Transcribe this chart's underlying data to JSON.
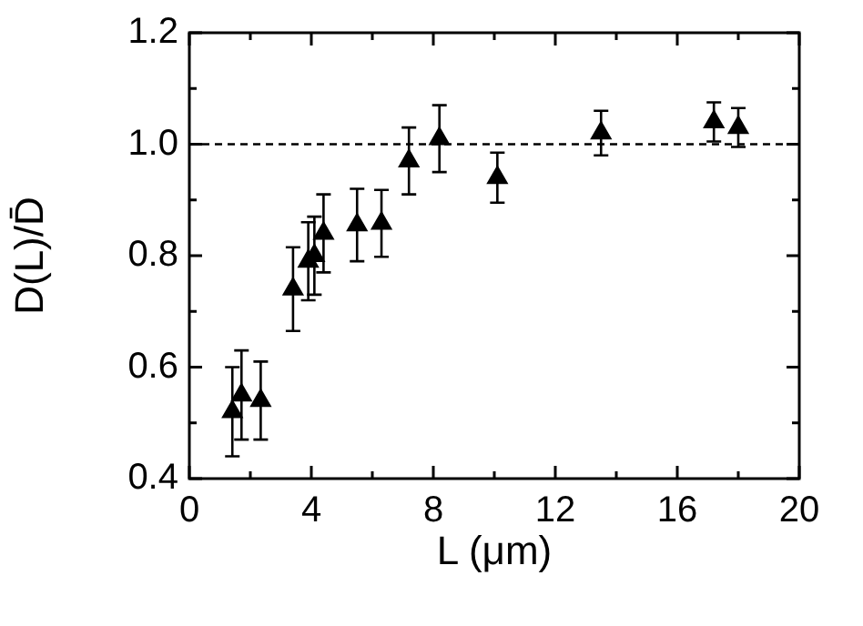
{
  "chart_data": {
    "type": "scatter",
    "xlabel": "L (μm)",
    "ylabel": "D(L)/D̄",
    "x": [
      1.41,
      1.71,
      2.34,
      3.4,
      3.9,
      4.1,
      4.4,
      5.5,
      6.3,
      7.2,
      8.2,
      10.1,
      13.5,
      17.2,
      18.0
    ],
    "series": [
      {
        "color": "#000000",
        "values": [
          0.52,
          0.55,
          0.54,
          0.74,
          0.79,
          0.8,
          0.84,
          0.855,
          0.858,
          0.97,
          1.01,
          0.94,
          1.02,
          1.04,
          1.03
        ],
        "errors": [
          0.08,
          0.08,
          0.07,
          0.075,
          0.07,
          0.07,
          0.07,
          0.065,
          0.06,
          0.06,
          0.06,
          0.045,
          0.04,
          0.035,
          0.035
        ]
      }
    ],
    "marker": "triangle",
    "xlim": [
      0,
      20
    ],
    "xticks": [
      0,
      {
        "value": 2,
        "label": null
      },
      4,
      {
        "value": 6,
        "label": null
      },
      8,
      {
        "value": 10,
        "label": null
      },
      12,
      {
        "value": 14,
        "label": null
      },
      16,
      {
        "value": 18,
        "label": null
      },
      20
    ],
    "ylim": [
      0.4,
      1.2
    ],
    "yticks": [
      0.4,
      {
        "value": 0.5,
        "label": null
      },
      0.6,
      {
        "value": 0.7,
        "label": null
      },
      0.8,
      {
        "value": 0.9,
        "label": null
      },
      {
        "value": 1.0,
        "label": "1.0"
      },
      {
        "value": 1.1,
        "label": null
      },
      1.2
    ],
    "ref_lines": [
      {
        "axis": "y",
        "value": 1.0,
        "line_style": "dashed"
      }
    ],
    "grid": false,
    "legend": false
  }
}
